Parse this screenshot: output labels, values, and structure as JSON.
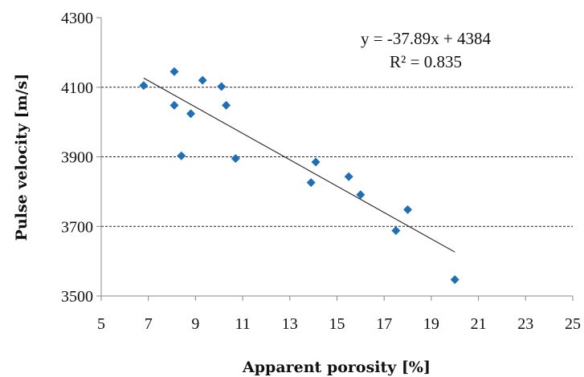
{
  "chart_data": {
    "type": "scatter",
    "xlabel": "Apparent porosity [%]",
    "ylabel": "Pulse velocity [m/s]",
    "xlim": [
      5,
      25
    ],
    "ylim": [
      3500,
      4300
    ],
    "x_ticks": [
      "5",
      "7",
      "9",
      "11",
      "13",
      "15",
      "17",
      "19",
      "21",
      "23",
      "25"
    ],
    "y_ticks": [
      "3500",
      "3700",
      "3900",
      "4100",
      "4300"
    ],
    "grid": "horizontal dashed at 3700, 3900, 4100",
    "series": [
      {
        "marker": "diamond",
        "color": "#1f6fb6",
        "points": [
          {
            "x": 6.8,
            "y": 4105
          },
          {
            "x": 8.1,
            "y": 4145
          },
          {
            "x": 8.1,
            "y": 4048
          },
          {
            "x": 8.8,
            "y": 4024
          },
          {
            "x": 9.3,
            "y": 4120
          },
          {
            "x": 8.4,
            "y": 3903
          },
          {
            "x": 10.1,
            "y": 4102
          },
          {
            "x": 10.3,
            "y": 4048
          },
          {
            "x": 10.7,
            "y": 3895
          },
          {
            "x": 13.9,
            "y": 3826
          },
          {
            "x": 14.1,
            "y": 3885
          },
          {
            "x": 15.5,
            "y": 3843
          },
          {
            "x": 16.0,
            "y": 3791
          },
          {
            "x": 17.5,
            "y": 3688
          },
          {
            "x": 18.0,
            "y": 3748
          },
          {
            "x": 20.0,
            "y": 3547
          }
        ]
      }
    ],
    "trendline": {
      "type": "linear",
      "slope": -37.89,
      "intercept": 4384,
      "x_range": [
        6.8,
        20.0
      ],
      "equation_text": "y = -37.89x + 4384",
      "r2_text": "R² = 0.835",
      "color": "#333333"
    },
    "colors": {
      "marker": "#1f6fb6",
      "axis": "#888888",
      "grid": "#222222"
    }
  }
}
